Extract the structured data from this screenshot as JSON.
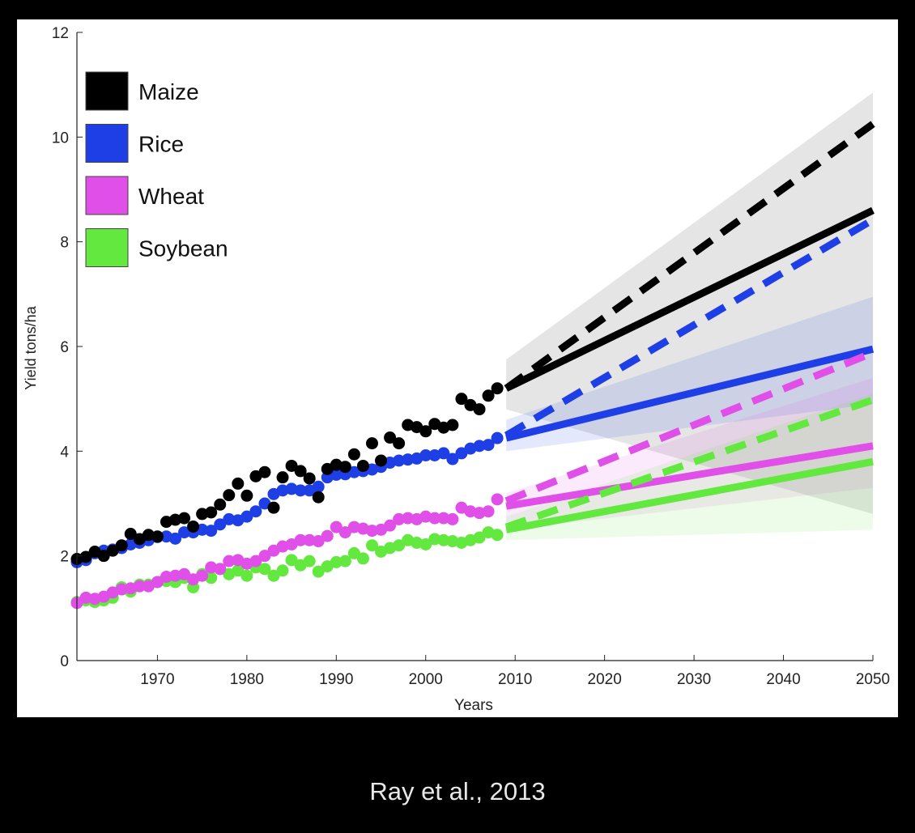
{
  "caption": "Ray et al., 2013",
  "chart_data": {
    "type": "scatter",
    "xlabel": "Years",
    "ylabel": "Yield tons/ha",
    "xlim": [
      1961,
      2050
    ],
    "ylim": [
      0,
      12
    ],
    "x_ticks": [
      1970,
      1980,
      1990,
      2000,
      2010,
      2020,
      2030,
      2040,
      2050
    ],
    "y_ticks": [
      0,
      2,
      4,
      6,
      8,
      10,
      12
    ],
    "legend_position": "top-left",
    "grid": false,
    "series": [
      {
        "name": "Maize",
        "color": "#000000",
        "observed": {
          "x": [
            1961,
            1962,
            1963,
            1964,
            1965,
            1966,
            1967,
            1968,
            1969,
            1970,
            1971,
            1972,
            1973,
            1974,
            1975,
            1976,
            1977,
            1978,
            1979,
            1980,
            1981,
            1982,
            1983,
            1984,
            1985,
            1986,
            1987,
            1988,
            1989,
            1990,
            1991,
            1992,
            1993,
            1994,
            1995,
            1996,
            1997,
            1998,
            1999,
            2000,
            2001,
            2002,
            2003,
            2004,
            2005,
            2006,
            2007,
            2008
          ],
          "y": [
            1.94,
            1.98,
            2.08,
            2.0,
            2.1,
            2.2,
            2.42,
            2.32,
            2.4,
            2.37,
            2.65,
            2.69,
            2.72,
            2.56,
            2.8,
            2.83,
            2.98,
            3.16,
            3.38,
            3.15,
            3.52,
            3.6,
            2.92,
            3.5,
            3.72,
            3.62,
            3.48,
            3.12,
            3.66,
            3.74,
            3.7,
            3.94,
            3.72,
            4.15,
            3.82,
            4.26,
            4.15,
            4.5,
            4.46,
            4.38,
            4.52,
            4.45,
            4.5,
            5.0,
            4.88,
            4.8,
            5.06,
            5.2
          ]
        },
        "projection_current": {
          "x": [
            2009,
            2050
          ],
          "y": [
            5.2,
            8.6
          ]
        },
        "projection_required": {
          "x": [
            2009,
            2050
          ],
          "y": [
            5.2,
            10.25
          ]
        },
        "band": {
          "x": [
            2009,
            2050
          ],
          "lower": [
            4.8,
            2.8
          ],
          "upper": [
            5.75,
            10.85
          ]
        }
      },
      {
        "name": "Rice",
        "color": "#1f3fe6",
        "observed": {
          "x": [
            1961,
            1962,
            1963,
            1964,
            1965,
            1966,
            1967,
            1968,
            1969,
            1970,
            1971,
            1972,
            1973,
            1974,
            1975,
            1976,
            1977,
            1978,
            1979,
            1980,
            1981,
            1982,
            1983,
            1984,
            1985,
            1986,
            1987,
            1988,
            1989,
            1990,
            1991,
            1992,
            1993,
            1994,
            1995,
            1996,
            1997,
            1998,
            1999,
            2000,
            2001,
            2002,
            2003,
            2004,
            2005,
            2006,
            2007,
            2008
          ],
          "y": [
            1.88,
            1.92,
            2.05,
            2.1,
            2.12,
            2.15,
            2.22,
            2.25,
            2.3,
            2.36,
            2.37,
            2.33,
            2.45,
            2.45,
            2.5,
            2.48,
            2.6,
            2.7,
            2.68,
            2.75,
            2.85,
            3.0,
            3.18,
            3.25,
            3.28,
            3.25,
            3.25,
            3.32,
            3.5,
            3.55,
            3.56,
            3.6,
            3.62,
            3.65,
            3.7,
            3.78,
            3.82,
            3.84,
            3.86,
            3.92,
            3.92,
            3.96,
            3.85,
            3.96,
            4.05,
            4.1,
            4.12,
            4.25
          ]
        },
        "projection_current": {
          "x": [
            2009,
            2050
          ],
          "y": [
            4.25,
            5.95
          ]
        },
        "projection_required": {
          "x": [
            2009,
            2050
          ],
          "y": [
            4.3,
            8.42
          ]
        },
        "band": {
          "x": [
            2009,
            2050
          ],
          "lower": [
            4.0,
            4.9
          ],
          "upper": [
            4.6,
            6.95
          ]
        }
      },
      {
        "name": "Wheat",
        "color": "#e04fe8",
        "observed": {
          "x": [
            1961,
            1962,
            1963,
            1964,
            1965,
            1966,
            1967,
            1968,
            1969,
            1970,
            1971,
            1972,
            1973,
            1974,
            1975,
            1976,
            1977,
            1978,
            1979,
            1980,
            1981,
            1982,
            1983,
            1984,
            1985,
            1986,
            1987,
            1988,
            1989,
            1990,
            1991,
            1992,
            1993,
            1994,
            1995,
            1996,
            1997,
            1998,
            1999,
            2000,
            2001,
            2002,
            2003,
            2004,
            2005,
            2006,
            2007,
            2008
          ],
          "y": [
            1.1,
            1.2,
            1.18,
            1.22,
            1.3,
            1.36,
            1.38,
            1.42,
            1.42,
            1.5,
            1.6,
            1.62,
            1.65,
            1.55,
            1.62,
            1.78,
            1.75,
            1.9,
            1.92,
            1.85,
            1.9,
            2.0,
            2.1,
            2.18,
            2.22,
            2.3,
            2.3,
            2.28,
            2.38,
            2.55,
            2.45,
            2.55,
            2.52,
            2.48,
            2.5,
            2.58,
            2.7,
            2.72,
            2.7,
            2.75,
            2.72,
            2.72,
            2.7,
            2.92,
            2.85,
            2.82,
            2.85,
            3.08
          ]
        },
        "projection_current": {
          "x": [
            2009,
            2050
          ],
          "y": [
            2.95,
            4.1
          ]
        },
        "projection_required": {
          "x": [
            2009,
            2050
          ],
          "y": [
            3.05,
            5.88
          ]
        },
        "band": {
          "x": [
            2009,
            2050
          ],
          "lower": [
            2.5,
            3.3
          ],
          "upper": [
            3.2,
            5.4
          ]
        }
      },
      {
        "name": "Soybean",
        "color": "#62e83f",
        "observed": {
          "x": [
            1961,
            1962,
            1963,
            1964,
            1965,
            1966,
            1967,
            1968,
            1969,
            1970,
            1971,
            1972,
            1973,
            1974,
            1975,
            1976,
            1977,
            1978,
            1979,
            1980,
            1981,
            1982,
            1983,
            1984,
            1985,
            1986,
            1987,
            1988,
            1989,
            1990,
            1991,
            1992,
            1993,
            1994,
            1995,
            1996,
            1997,
            1998,
            1999,
            2000,
            2001,
            2002,
            2003,
            2004,
            2005,
            2006,
            2007,
            2008
          ],
          "y": [
            1.12,
            1.15,
            1.12,
            1.15,
            1.2,
            1.4,
            1.32,
            1.45,
            1.45,
            1.5,
            1.52,
            1.5,
            1.58,
            1.4,
            1.65,
            1.58,
            1.75,
            1.65,
            1.72,
            1.62,
            1.78,
            1.75,
            1.62,
            1.72,
            1.92,
            1.82,
            1.9,
            1.7,
            1.8,
            1.88,
            1.9,
            2.05,
            1.95,
            2.2,
            2.08,
            2.15,
            2.2,
            2.3,
            2.25,
            2.22,
            2.32,
            2.3,
            2.28,
            2.25,
            2.3,
            2.35,
            2.45,
            2.4
          ]
        },
        "projection_current": {
          "x": [
            2009,
            2050
          ],
          "y": [
            2.5,
            3.8
          ]
        },
        "projection_required": {
          "x": [
            2009,
            2050
          ],
          "y": [
            2.55,
            4.98
          ]
        },
        "band": {
          "x": [
            2009,
            2050
          ],
          "lower": [
            2.3,
            2.5
          ],
          "upper": [
            2.75,
            5.1
          ]
        }
      }
    ]
  }
}
